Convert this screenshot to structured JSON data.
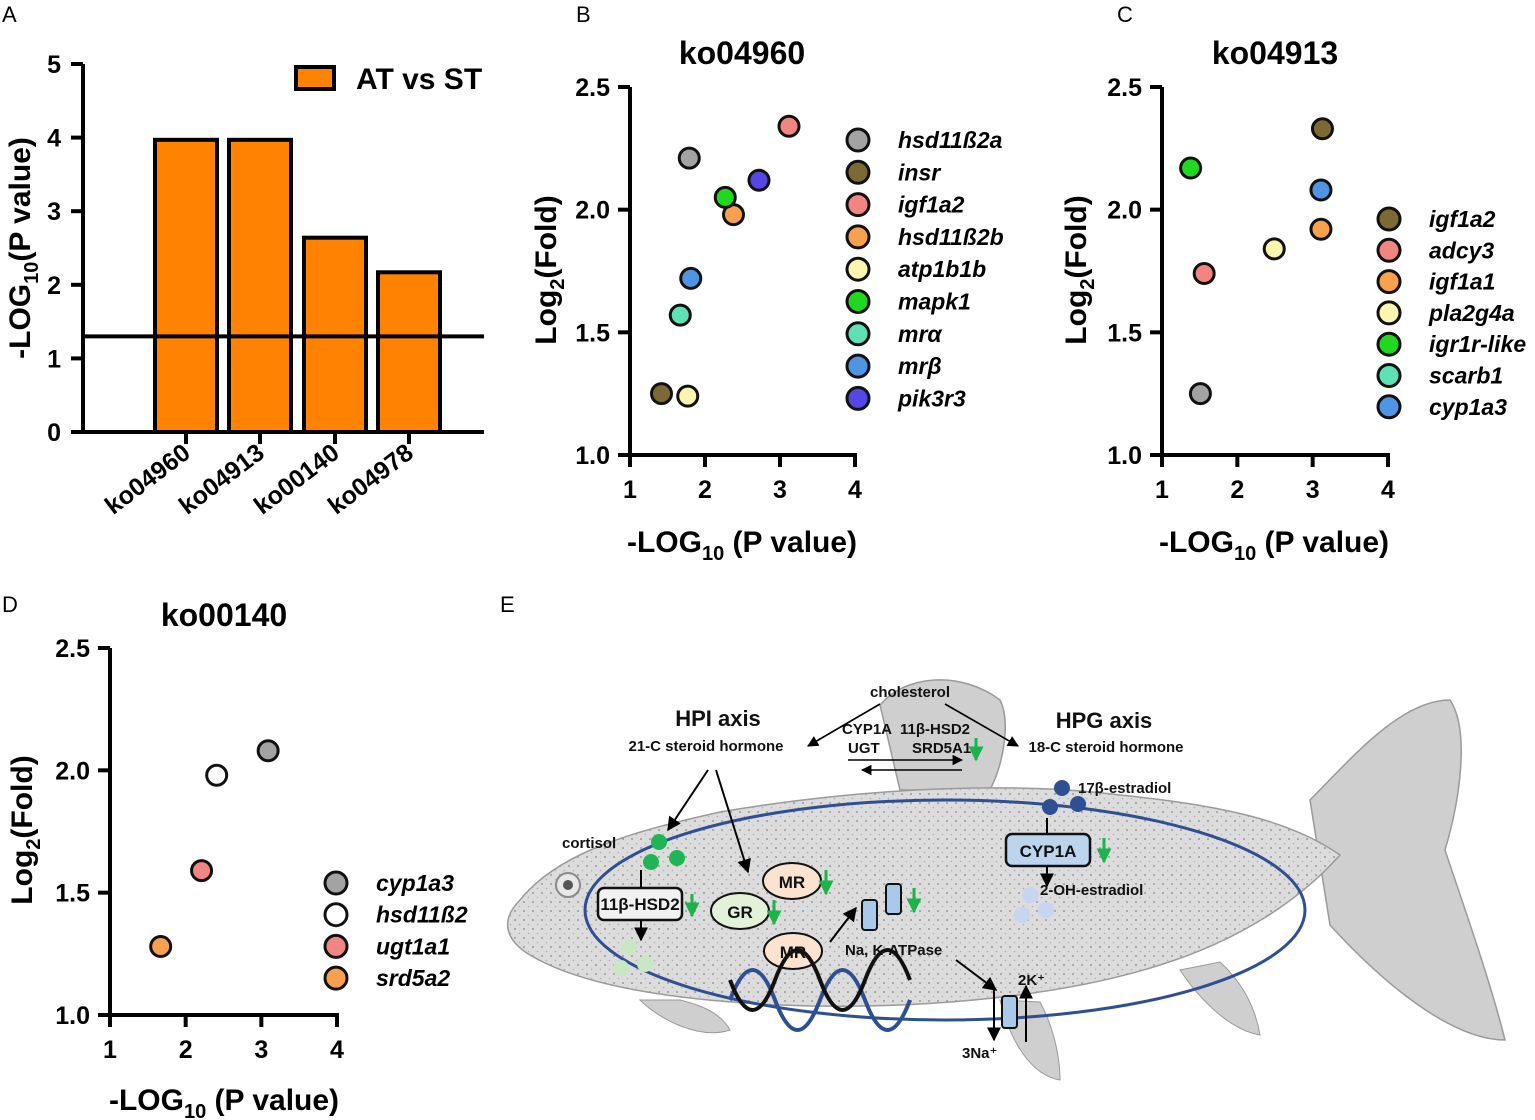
{
  "colors": {
    "orange": "#ff8200",
    "c_gray": "#a3a3a3",
    "c_olive": "#7b6a33",
    "c_red": "#f08582",
    "c_orange": "#f7a04d",
    "c_yellow": "#fbf5b0",
    "c_green": "#21d821",
    "c_teal": "#5ee2b5",
    "c_blue": "#4f95e3",
    "c_purple": "#5547e4",
    "c_white": "#ffffff",
    "fish_body": "#d9d9d9",
    "circle_blue": "#2f4f93",
    "arrow_green": "#1bb34a"
  },
  "panel_labels": {
    "a": "A",
    "b": "B",
    "c": "C",
    "d": "D",
    "e": "E"
  },
  "chart_data": [
    {
      "id": "A",
      "type": "bar",
      "title": "",
      "ylabel": "-LOG10(P value)",
      "ylabel_main": "-LOG",
      "ylabel_sub": "10",
      "ylabel_tail": "(P value)",
      "xlabel": "",
      "categories": [
        "ko04960",
        "ko04913",
        "ko00140",
        "ko04978"
      ],
      "series": [
        {
          "name": "AT vs ST",
          "values": [
            3.97,
            3.97,
            2.64,
            2.17
          ]
        }
      ],
      "threshold": 1.3,
      "ylim": [
        0,
        5
      ],
      "yticks": [
        "0",
        "1",
        "2",
        "3",
        "4",
        "5"
      ],
      "legend": "top-right"
    },
    {
      "id": "B",
      "type": "scatter",
      "title": "ko04960",
      "xlabel": "-LOG10 (P value)",
      "xlabel_main": "-LOG",
      "xlabel_sub": "10",
      "xlabel_tail": " (P value)",
      "ylabel": "Log2(Fold)",
      "ylabel_main": "Log",
      "ylabel_sub": "2",
      "ylabel_tail": "(Fold)",
      "xlim": [
        1,
        4
      ],
      "ylim": [
        1.0,
        2.5
      ],
      "xticks": [
        "1",
        "2",
        "3",
        "4"
      ],
      "yticks": [
        "1.0",
        "1.5",
        "2.0",
        "2.5"
      ],
      "legend": "right",
      "series": [
        {
          "name": "hsd11ß2a",
          "color": "#a3a3a3",
          "x": 1.79,
          "y": 2.21
        },
        {
          "name": "insr",
          "color": "#7b6a33",
          "x": 1.42,
          "y": 1.25
        },
        {
          "name": "igf1a2",
          "color": "#f08582",
          "x": 3.12,
          "y": 2.34
        },
        {
          "name": "hsd11ß2b",
          "color": "#f7a04d",
          "x": 2.38,
          "y": 1.98
        },
        {
          "name": "atp1b1b",
          "color": "#fbf5b0",
          "x": 1.77,
          "y": 1.24
        },
        {
          "name": "mapk1",
          "color": "#21d821",
          "x": 2.27,
          "y": 2.05
        },
        {
          "name": "mrα",
          "color": "#5ee2b5",
          "x": 1.67,
          "y": 1.57
        },
        {
          "name": "mrβ",
          "color": "#4f95e3",
          "x": 1.81,
          "y": 1.72
        },
        {
          "name": "pik3r3",
          "color": "#5547e4",
          "x": 2.72,
          "y": 2.12
        }
      ]
    },
    {
      "id": "C",
      "type": "scatter",
      "title": "ko04913",
      "xlabel": "-LOG10 (P value)",
      "xlabel_main": "-LOG",
      "xlabel_sub": "10",
      "xlabel_tail": " (P value)",
      "ylabel": "Log2(Fold)",
      "ylabel_main": "Log",
      "ylabel_sub": "2",
      "ylabel_tail": "(Fold)",
      "xlim": [
        1,
        4
      ],
      "ylim": [
        1.0,
        2.5
      ],
      "xticks": [
        "1",
        "2",
        "3",
        "4"
      ],
      "yticks": [
        "1.0",
        "1.5",
        "2.0",
        "2.5"
      ],
      "legend": "right",
      "series": [
        {
          "name": "igf1a2",
          "color": "#7b6a33",
          "x": 3.13,
          "y": 2.33
        },
        {
          "name": "adcy3",
          "color": "#f08582",
          "x": 1.56,
          "y": 1.74
        },
        {
          "name": "igf1a1",
          "color": "#f7a04d",
          "x": 3.11,
          "y": 1.92
        },
        {
          "name": "pla2g4a",
          "color": "#fbf5b0",
          "x": 2.49,
          "y": 1.84
        },
        {
          "name": "igr1r-like",
          "color": "#21d821",
          "x": 1.38,
          "y": 2.17
        },
        {
          "name": "scarb1",
          "color": "#5ee2b5",
          "x": null,
          "y": null
        },
        {
          "name": "cyp1a3",
          "color": "#4f95e3",
          "x": 3.11,
          "y": 2.08
        },
        {
          "name": "",
          "color": "#a3a3a3",
          "x": 1.51,
          "y": 1.25
        }
      ]
    },
    {
      "id": "D",
      "type": "scatter",
      "title": "ko00140",
      "xlabel": "-LOG10 (P value)",
      "xlabel_main": "-LOG",
      "xlabel_sub": "10",
      "xlabel_tail": " (P value)",
      "ylabel": "Log2(Fold)",
      "ylabel_main": "Log",
      "ylabel_sub": "2",
      "ylabel_tail": "(Fold)",
      "xlim": [
        1,
        4
      ],
      "ylim": [
        1.0,
        2.5
      ],
      "xticks": [
        "1",
        "2",
        "3",
        "4"
      ],
      "yticks": [
        "1.0",
        "1.5",
        "2.0",
        "2.5"
      ],
      "legend": "right",
      "series": [
        {
          "name": "cyp1a3",
          "color": "#a3a3a3",
          "x": 3.09,
          "y": 2.08
        },
        {
          "name": "hsd11ß2",
          "color": "#ffffff",
          "x": 2.41,
          "y": 1.98
        },
        {
          "name": "ugt1a1",
          "color": "#f08582",
          "x": 2.21,
          "y": 1.59
        },
        {
          "name": "srd5a2",
          "color": "#f7a04d",
          "x": 1.67,
          "y": 1.28
        }
      ]
    }
  ],
  "diagram": {
    "cholesterol": "cholesterol",
    "hpi_title": "HPI axis",
    "hpi_sub": "21-C steroid hormone",
    "hpg_title": "HPG axis",
    "hpg_sub": "18-C steroid hormone",
    "enz_cyp1a": "CYP1A",
    "enz_hsd2": "11β-HSD2",
    "enz_ugt": "UGT",
    "enz_srd5a1": "SRD5A1",
    "estradiol": "17β-estradiol",
    "cyp1a_box": "CYP1A",
    "oh_estradiol": "2-OH-estradiol",
    "cortisol": "cortisol",
    "hsd2_box": "11β-HSD2",
    "gr": "GR",
    "mr1": "MR",
    "mr2": "MR",
    "atpase": "Na, K-ATPase",
    "k_ion": "2K⁺",
    "na_ion": "3Na⁺"
  }
}
